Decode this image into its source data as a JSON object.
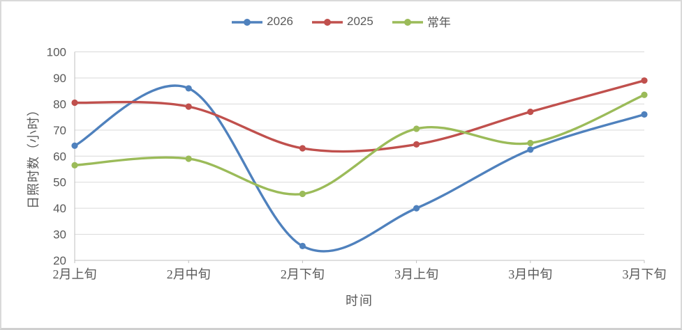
{
  "window": {
    "background_color": "#FFFFFF",
    "border_color": "#D9D9D9"
  },
  "legend": {
    "position": "top-center",
    "items": [
      {
        "label": "2026",
        "color": "#4F81BD"
      },
      {
        "label": "2025",
        "color": "#C0504D"
      },
      {
        "label": "常年",
        "color": "#9BBB59"
      }
    ]
  },
  "axes_style": {
    "grid_color": "#D9D9D9",
    "axis_line_color": "#BFBFBF",
    "tick_mark_color": "#BFBFBF",
    "label_color": "#595959"
  },
  "chart_data": {
    "type": "line",
    "smooth": true,
    "markers": "circle",
    "title": "",
    "xlabel": "时间",
    "ylabel": "日照时数（小时）",
    "categories": [
      "2月上旬",
      "2月中旬",
      "2月下旬",
      "3月上旬",
      "3月中旬",
      "3月下旬"
    ],
    "series": [
      {
        "name": "2026",
        "color": "#4F81BD",
        "values": [
          64,
          86,
          25.5,
          40,
          62.5,
          76
        ]
      },
      {
        "name": "2025",
        "color": "#C0504D",
        "values": [
          80.5,
          79,
          63,
          64.5,
          77,
          89
        ]
      },
      {
        "name": "常年",
        "color": "#9BBB59",
        "values": [
          56.5,
          59,
          45.5,
          70.5,
          65,
          83.5
        ]
      }
    ],
    "ylim": [
      20,
      100
    ],
    "ytick_step": 10,
    "ytick_labels": [
      "20",
      "30",
      "40",
      "50",
      "60",
      "70",
      "80",
      "90",
      "100"
    ],
    "grid": true,
    "legend_position": "top"
  }
}
